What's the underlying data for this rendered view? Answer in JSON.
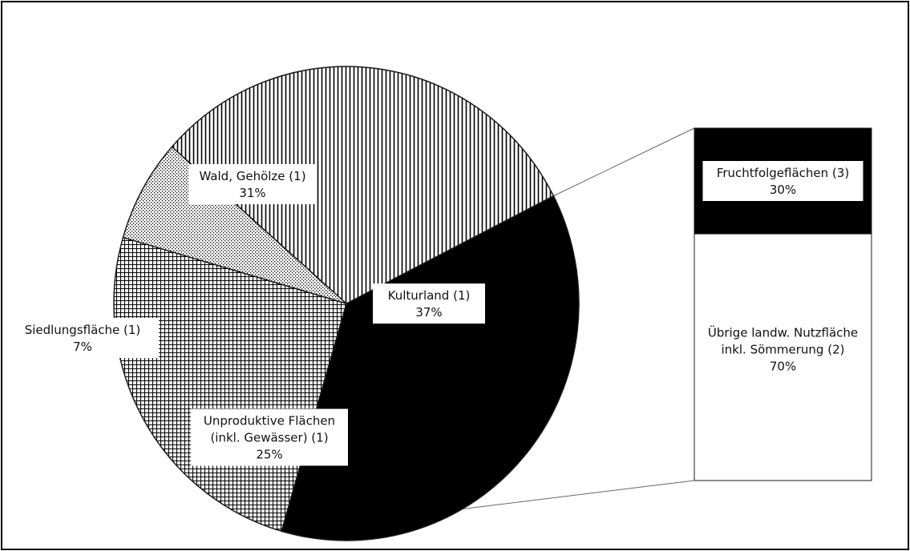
{
  "chart_data": {
    "type": "pie",
    "subtype": "bar-of-pie",
    "pie": {
      "slices": [
        {
          "label": "Kulturland (1)",
          "percent_label": "37%",
          "value": 37,
          "fill": "solid-black"
        },
        {
          "label": "Unproduktive Flächen (inkl. Gewässer) (1)",
          "label_lines": [
            "Unproduktive Flächen",
            "(inkl. Gewässer) (1)"
          ],
          "percent_label": "25%",
          "value": 25,
          "fill": "grid"
        },
        {
          "label": "Siedlungsfläche (1)",
          "percent_label": "7%",
          "value": 7,
          "fill": "dots"
        },
        {
          "label": "Wald, Gehölze (1)",
          "percent_label": "31%",
          "value": 31,
          "fill": "vertical-lines"
        }
      ]
    },
    "bar": {
      "breakdown_of": "Kulturland (1)",
      "segments": [
        {
          "label": "Fruchtfolgeflächen (3)",
          "percent_label": "30%",
          "value": 30,
          "fill": "solid-black"
        },
        {
          "label": "Übrige landw. Nutzfläche inkl. Sömmerung (2)",
          "label_lines": [
            "Übrige landw. Nutzfläche",
            "inkl. Sömmerung (2)"
          ],
          "percent_label": "70%",
          "value": 70,
          "fill": "white"
        }
      ]
    },
    "legend": "none",
    "colors": {
      "black": "#000000",
      "white": "#ffffff",
      "stroke": "#1a1a1a"
    }
  }
}
